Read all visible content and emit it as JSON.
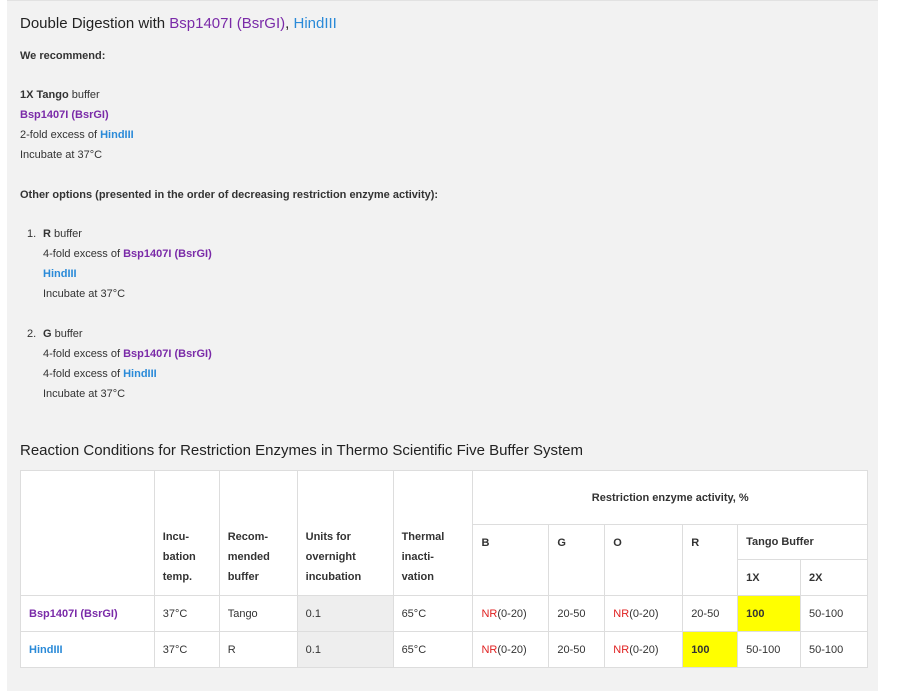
{
  "heading": {
    "prefix": "Double Digestion with ",
    "enzyme1": "Bsp1407I (BsrGI)",
    "sep": ", ",
    "enzyme2": "HindIII"
  },
  "recommend": {
    "title": "We recommend:",
    "buffer_bold": "1X Tango",
    "buffer_rest": " buffer",
    "enzyme1": "Bsp1407I (BsrGI)",
    "excess_prefix": "2-fold excess of ",
    "excess_enzyme": "HindIII",
    "incubate": "Incubate at 37°C"
  },
  "other_title": "Other options (presented in the order of decreasing restriction enzyme activity):",
  "options": [
    {
      "num": "1.",
      "buffer_bold": "R",
      "buffer_rest": " buffer",
      "l2_prefix": "4-fold excess of ",
      "l2_enzyme": "Bsp1407I (BsrGI)",
      "l3_prefix": "",
      "l3_enzyme": "HindIII",
      "incubate": "Incubate at 37°C"
    },
    {
      "num": "2.",
      "buffer_bold": "G",
      "buffer_rest": " buffer",
      "l2_prefix": "4-fold excess of ",
      "l2_enzyme": "Bsp1407I (BsrGI)",
      "l3_prefix": "4-fold excess of ",
      "l3_enzyme": "HindIII",
      "incubate": "Incubate at 37°C"
    }
  ],
  "table_title": "Reaction Conditions for Restriction Enzymes in Thermo Scientific Five Buffer System",
  "table": {
    "activity_header": "Restriction enzyme activity, %",
    "col_incub": [
      "Incu-",
      "bation",
      "temp."
    ],
    "col_buffer": [
      "Recom-",
      "mended",
      "buffer"
    ],
    "col_units": [
      "Units for",
      "overnight",
      "incubation"
    ],
    "col_thermal": [
      "Thermal",
      "inacti-",
      "vation"
    ],
    "buffers": [
      "B",
      "G",
      "O",
      "R"
    ],
    "tango_header": "Tango Buffer",
    "tango_sub": [
      "1X",
      "2X"
    ],
    "rows": [
      {
        "enzyme": "Bsp1407I (BsrGI)",
        "temp": "37°C",
        "buffer": "Tango",
        "units": "0.1",
        "thermal": "65°C",
        "B_nr": "NR",
        "B_rest": "(0-20)",
        "G": "20-50",
        "O_nr": "NR",
        "O_rest": "(0-20)",
        "R": "20-50",
        "T1X": "100",
        "T2X": "50-100"
      },
      {
        "enzyme": "HindIII",
        "temp": "37°C",
        "buffer": "R",
        "units": "0.1",
        "thermal": "65°C",
        "B_nr": "NR",
        "B_rest": "(0-20)",
        "G": "20-50",
        "O_nr": "NR",
        "O_rest": "(0-20)",
        "R": "100",
        "T1X": "50-100",
        "T2X": "50-100"
      }
    ]
  }
}
